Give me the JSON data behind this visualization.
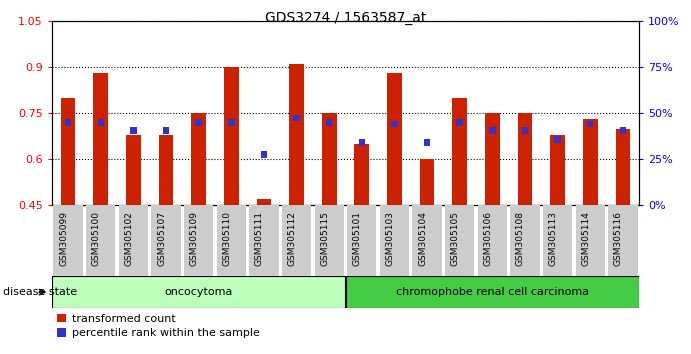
{
  "title": "GDS3274 / 1563587_at",
  "samples": [
    "GSM305099",
    "GSM305100",
    "GSM305102",
    "GSM305107",
    "GSM305109",
    "GSM305110",
    "GSM305111",
    "GSM305112",
    "GSM305115",
    "GSM305101",
    "GSM305103",
    "GSM305104",
    "GSM305105",
    "GSM305106",
    "GSM305108",
    "GSM305113",
    "GSM305114",
    "GSM305116"
  ],
  "transformed_count": [
    0.8,
    0.88,
    0.68,
    0.68,
    0.75,
    0.9,
    0.47,
    0.91,
    0.75,
    0.65,
    0.88,
    0.6,
    0.8,
    0.75,
    0.75,
    0.68,
    0.73,
    0.7
  ],
  "percentile_rank": [
    0.72,
    0.72,
    0.695,
    0.695,
    0.72,
    0.72,
    0.615,
    0.735,
    0.72,
    0.655,
    0.715,
    0.655,
    0.72,
    0.695,
    0.695,
    0.665,
    0.715,
    0.695
  ],
  "group1_label": "oncocytoma",
  "group1_count": 9,
  "group2_label": "chromophobe renal cell carcinoma",
  "group2_count": 9,
  "disease_state_label": "disease state",
  "ymin": 0.45,
  "ymax": 1.05,
  "yticks_left": [
    0.45,
    0.6,
    0.75,
    0.9,
    1.05
  ],
  "right_yticks_pct": [
    0,
    25,
    50,
    75,
    100
  ],
  "bar_color": "#cc2200",
  "percentile_color": "#3333cc",
  "group1_color": "#bbffbb",
  "group2_color": "#44cc44",
  "xtick_bg": "#cccccc",
  "legend_items": [
    "transformed count",
    "percentile rank within the sample"
  ]
}
